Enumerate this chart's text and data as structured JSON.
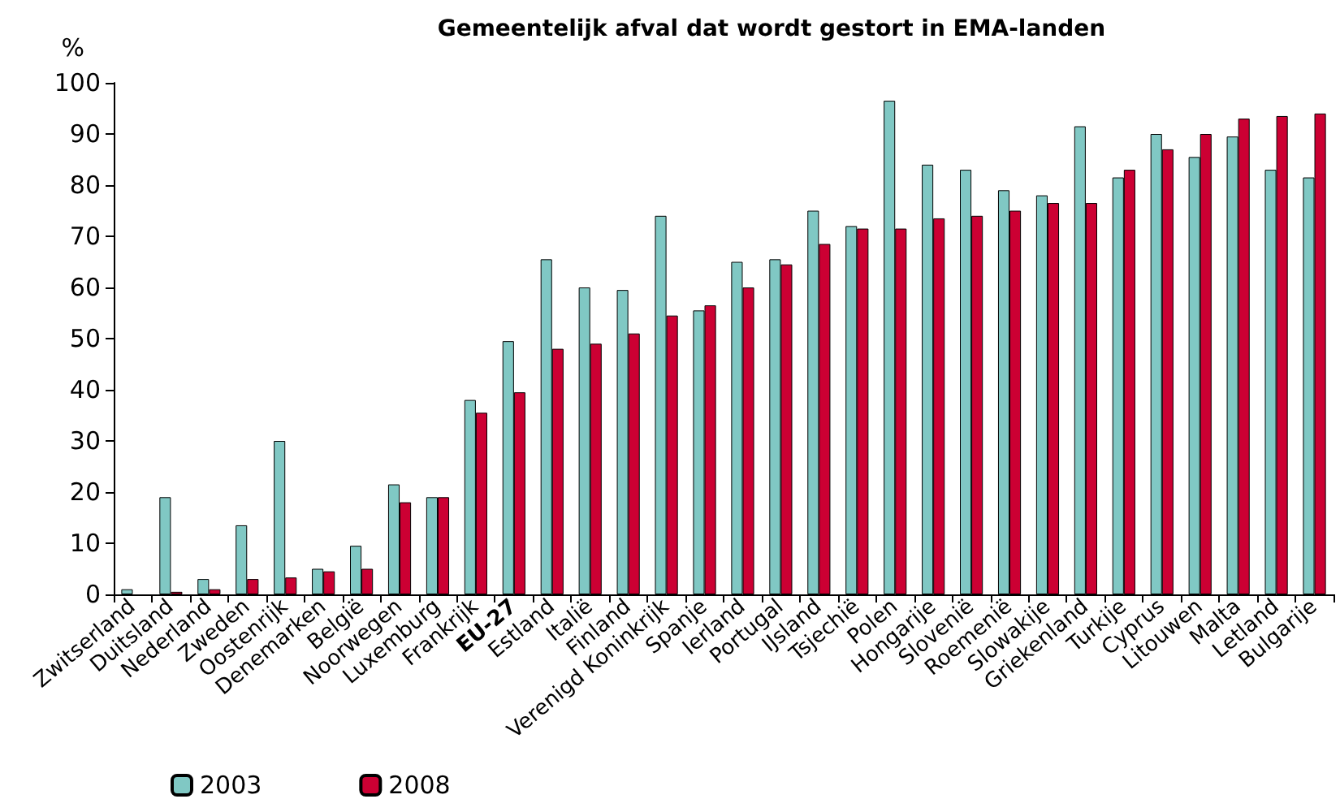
{
  "chart_data": {
    "type": "bar",
    "title": "Gemeentelijk afval dat wordt gestort in EMA-landen",
    "ylabel": "%",
    "categories": [
      "Zwitserland",
      "Duitsland",
      "Nederland",
      "Zweden",
      "Oostenrijk",
      "Denemarken",
      "België",
      "Noorwegen",
      "Luxemburg",
      "Frankrijk",
      "EU-27",
      "Estland",
      "Italië",
      "Finland",
      "Verenigd Koninkrijk",
      "Spanje",
      "Ierland",
      "Portugal",
      "IJsland",
      "Tsjechië",
      "Polen",
      "Hongarije",
      "Slovenië",
      "Roemenië",
      "Slowakije",
      "Griekenland",
      "Turkije",
      "Cyprus",
      "Litouwen",
      "Malta",
      "Letland",
      "Bulgarije"
    ],
    "series": [
      {
        "name": "2003",
        "color": "#80c8c4",
        "values": [
          1,
          19,
          3,
          13.5,
          30,
          5,
          9.5,
          21.5,
          19,
          38,
          49.5,
          65.5,
          60,
          59.5,
          74,
          55.5,
          65,
          65.5,
          75,
          72,
          96.5,
          84,
          83,
          79,
          78,
          91.5,
          81.5,
          90,
          85.5,
          89.5,
          83,
          81.5
        ]
      },
      {
        "name": "2008",
        "color": "#cc0033",
        "values": [
          null,
          0.5,
          1,
          3,
          3.3,
          4.5,
          5,
          18,
          19,
          35.5,
          39.5,
          48,
          49,
          51,
          54.5,
          56.5,
          60,
          64.5,
          68.5,
          71.5,
          71.5,
          73.5,
          74,
          75,
          76.5,
          76.5,
          83,
          87,
          90,
          93,
          93.5,
          94
        ]
      }
    ],
    "ylim": [
      0,
      100
    ],
    "yticks": [
      0,
      10,
      20,
      30,
      40,
      50,
      60,
      70,
      80,
      90,
      100
    ],
    "grid": false,
    "legend": "bottom left"
  }
}
